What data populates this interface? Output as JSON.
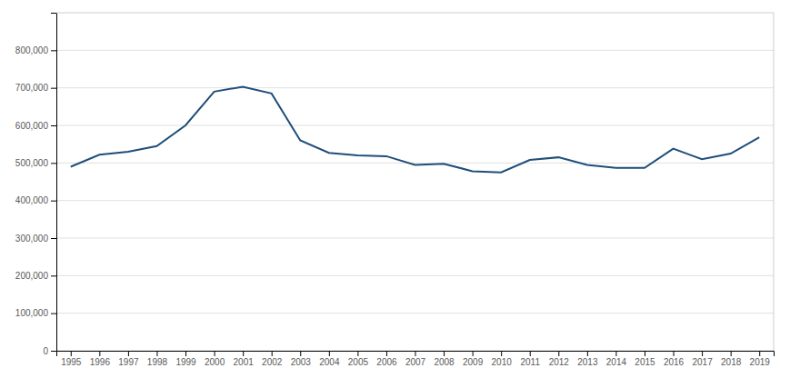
{
  "chart_data": {
    "type": "line",
    "x": [
      1995,
      1996,
      1997,
      1998,
      1999,
      2000,
      2001,
      2002,
      2003,
      2004,
      2005,
      2006,
      2007,
      2008,
      2009,
      2010,
      2011,
      2012,
      2013,
      2014,
      2015,
      2016,
      2017,
      2018,
      2019
    ],
    "values": [
      490000,
      522000,
      530000,
      545000,
      600000,
      690000,
      703000,
      685000,
      560000,
      527000,
      520000,
      518000,
      495000,
      498000,
      478000,
      475000,
      508000,
      515000,
      495000,
      487000,
      487000,
      538000,
      510000,
      525000,
      568000
    ],
    "color": "#1f4e79",
    "xlim": [
      1994.5,
      2019.5
    ],
    "xticks": [
      1995,
      1996,
      1997,
      1998,
      1999,
      2000,
      2001,
      2002,
      2003,
      2004,
      2005,
      2006,
      2007,
      2008,
      2009,
      2010,
      2011,
      2012,
      2013,
      2014,
      2015,
      2016,
      2017,
      2018,
      2019
    ],
    "ylim": [
      0,
      900000
    ],
    "yticks": [
      0,
      {
        "value": 100000,
        "label": "100,000"
      },
      {
        "value": 200000,
        "label": "200,000"
      },
      {
        "value": 300000,
        "label": "300,000"
      },
      {
        "value": 400000,
        "label": "400,000"
      },
      {
        "value": 500000,
        "label": "500,000"
      },
      {
        "value": 600000,
        "label": "600,000"
      },
      {
        "value": 700000,
        "label": "700,000"
      },
      {
        "value": 800000,
        "label": "800,000"
      }
    ],
    "grid": true
  }
}
